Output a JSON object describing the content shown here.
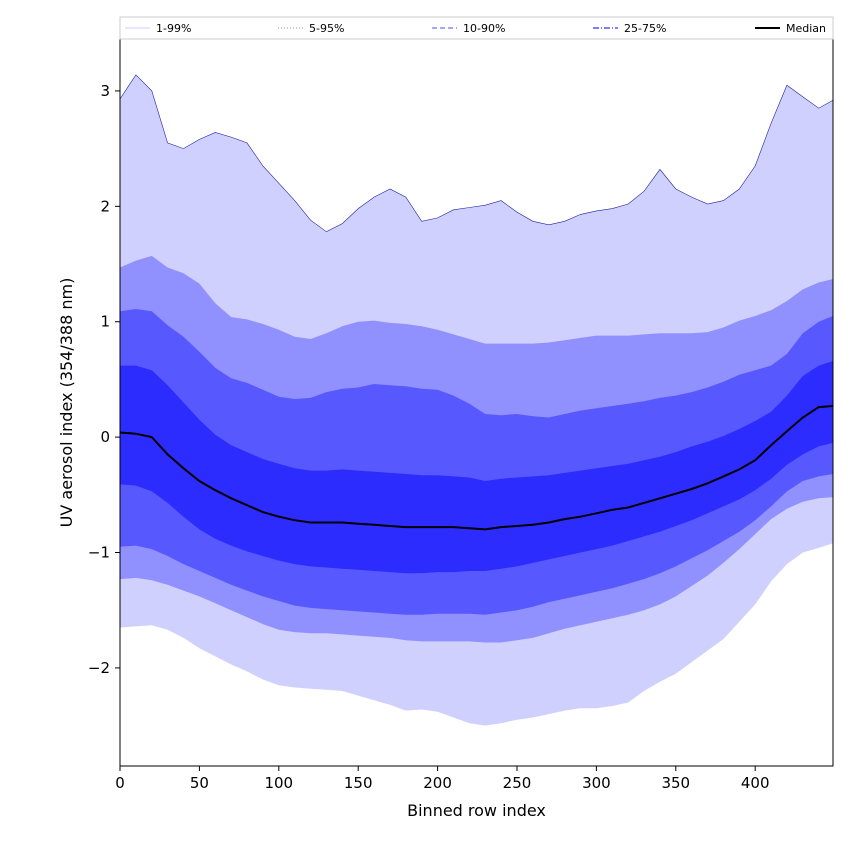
{
  "chart_data": {
    "type": "area",
    "xlabel": "Binned row index",
    "ylabel": "UV aerosol index (354/388 nm)",
    "xlim": [
      0,
      449
    ],
    "ylim": [
      -2.85,
      3.45
    ],
    "x_ticks": [
      0,
      50,
      100,
      150,
      200,
      250,
      300,
      350,
      400
    ],
    "y_ticks": [
      -2,
      -1,
      0,
      1,
      2,
      3
    ],
    "legend_position": "top",
    "x": [
      0,
      10,
      20,
      30,
      40,
      50,
      60,
      70,
      80,
      90,
      100,
      110,
      120,
      130,
      140,
      150,
      160,
      170,
      180,
      190,
      200,
      210,
      220,
      230,
      240,
      250,
      260,
      270,
      280,
      290,
      300,
      310,
      320,
      330,
      340,
      350,
      360,
      370,
      380,
      390,
      400,
      410,
      420,
      430,
      440,
      449
    ],
    "median": [
      0.04,
      0.03,
      0.0,
      -0.15,
      -0.27,
      -0.38,
      -0.46,
      -0.53,
      -0.59,
      -0.65,
      -0.69,
      -0.72,
      -0.74,
      -0.74,
      -0.74,
      -0.75,
      -0.76,
      -0.77,
      -0.78,
      -0.78,
      -0.78,
      -0.78,
      -0.79,
      -0.8,
      -0.78,
      -0.77,
      -0.76,
      -0.74,
      -0.71,
      -0.69,
      -0.66,
      -0.63,
      -0.61,
      -0.57,
      -0.53,
      -0.49,
      -0.45,
      -0.4,
      -0.34,
      -0.28,
      -0.2,
      -0.07,
      0.05,
      0.17,
      0.26,
      0.27
    ],
    "series": [
      {
        "name": "1-99%",
        "color": "#d0d0ff",
        "lower": [
          -1.65,
          -1.64,
          -1.63,
          -1.67,
          -1.74,
          -1.83,
          -1.9,
          -1.97,
          -2.03,
          -2.1,
          -2.15,
          -2.17,
          -2.18,
          -2.19,
          -2.2,
          -2.24,
          -2.28,
          -2.32,
          -2.37,
          -2.36,
          -2.38,
          -2.43,
          -2.48,
          -2.5,
          -2.48,
          -2.45,
          -2.43,
          -2.4,
          -2.37,
          -2.35,
          -2.35,
          -2.33,
          -2.3,
          -2.2,
          -2.12,
          -2.05,
          -1.95,
          -1.85,
          -1.75,
          -1.6,
          -1.45,
          -1.25,
          -1.1,
          -1.0,
          -0.96,
          -0.92
        ],
        "upper": [
          2.93,
          3.14,
          3.0,
          2.55,
          2.5,
          2.58,
          2.64,
          2.6,
          2.55,
          2.35,
          2.2,
          2.05,
          1.88,
          1.78,
          1.85,
          1.98,
          2.08,
          2.15,
          2.08,
          1.87,
          1.9,
          1.97,
          1.99,
          2.01,
          2.05,
          1.95,
          1.87,
          1.84,
          1.87,
          1.93,
          1.96,
          1.98,
          2.02,
          2.13,
          2.32,
          2.15,
          2.08,
          2.02,
          2.05,
          2.15,
          2.35,
          2.72,
          3.05,
          2.95,
          2.85,
          2.92
        ]
      },
      {
        "name": "5-95%",
        "color": "#9090ff",
        "lower": [
          -1.23,
          -1.22,
          -1.24,
          -1.28,
          -1.33,
          -1.38,
          -1.44,
          -1.5,
          -1.56,
          -1.62,
          -1.67,
          -1.69,
          -1.7,
          -1.7,
          -1.71,
          -1.72,
          -1.73,
          -1.74,
          -1.76,
          -1.77,
          -1.77,
          -1.77,
          -1.77,
          -1.78,
          -1.78,
          -1.76,
          -1.74,
          -1.7,
          -1.66,
          -1.63,
          -1.6,
          -1.57,
          -1.54,
          -1.5,
          -1.45,
          -1.38,
          -1.29,
          -1.2,
          -1.09,
          -0.97,
          -0.84,
          -0.71,
          -0.62,
          -0.56,
          -0.53,
          -0.52
        ],
        "upper": [
          1.47,
          1.53,
          1.57,
          1.47,
          1.42,
          1.33,
          1.16,
          1.04,
          1.02,
          0.98,
          0.93,
          0.87,
          0.85,
          0.9,
          0.96,
          1.0,
          1.01,
          0.99,
          0.98,
          0.96,
          0.93,
          0.89,
          0.85,
          0.81,
          0.81,
          0.81,
          0.81,
          0.82,
          0.84,
          0.86,
          0.88,
          0.88,
          0.88,
          0.89,
          0.9,
          0.9,
          0.9,
          0.91,
          0.95,
          1.01,
          1.05,
          1.1,
          1.18,
          1.28,
          1.34,
          1.37
        ]
      },
      {
        "name": "10-90%",
        "color": "#5858ff",
        "lower": [
          -0.95,
          -0.94,
          -0.97,
          -1.03,
          -1.1,
          -1.16,
          -1.22,
          -1.28,
          -1.33,
          -1.38,
          -1.42,
          -1.46,
          -1.48,
          -1.49,
          -1.5,
          -1.51,
          -1.52,
          -1.53,
          -1.54,
          -1.54,
          -1.53,
          -1.53,
          -1.53,
          -1.54,
          -1.52,
          -1.5,
          -1.47,
          -1.43,
          -1.4,
          -1.37,
          -1.34,
          -1.31,
          -1.27,
          -1.23,
          -1.18,
          -1.12,
          -1.05,
          -0.98,
          -0.9,
          -0.82,
          -0.72,
          -0.6,
          -0.47,
          -0.38,
          -0.34,
          -0.32
        ],
        "upper": [
          1.09,
          1.11,
          1.09,
          0.97,
          0.87,
          0.74,
          0.6,
          0.51,
          0.47,
          0.41,
          0.35,
          0.33,
          0.34,
          0.39,
          0.42,
          0.43,
          0.46,
          0.45,
          0.44,
          0.42,
          0.41,
          0.36,
          0.29,
          0.2,
          0.19,
          0.2,
          0.18,
          0.17,
          0.2,
          0.23,
          0.25,
          0.27,
          0.29,
          0.31,
          0.34,
          0.36,
          0.39,
          0.43,
          0.48,
          0.54,
          0.58,
          0.62,
          0.72,
          0.9,
          1.0,
          1.05
        ]
      },
      {
        "name": "25-75%",
        "color": "#2c2cff",
        "lower": [
          -0.41,
          -0.42,
          -0.47,
          -0.57,
          -0.69,
          -0.8,
          -0.88,
          -0.94,
          -0.99,
          -1.03,
          -1.07,
          -1.1,
          -1.12,
          -1.13,
          -1.14,
          -1.15,
          -1.16,
          -1.17,
          -1.18,
          -1.18,
          -1.17,
          -1.17,
          -1.16,
          -1.16,
          -1.14,
          -1.12,
          -1.09,
          -1.06,
          -1.03,
          -1.0,
          -0.97,
          -0.94,
          -0.9,
          -0.86,
          -0.82,
          -0.77,
          -0.72,
          -0.66,
          -0.6,
          -0.54,
          -0.46,
          -0.36,
          -0.24,
          -0.15,
          -0.08,
          -0.05
        ],
        "upper": [
          0.62,
          0.62,
          0.58,
          0.45,
          0.3,
          0.15,
          0.02,
          -0.07,
          -0.13,
          -0.19,
          -0.23,
          -0.27,
          -0.29,
          -0.29,
          -0.28,
          -0.29,
          -0.3,
          -0.31,
          -0.32,
          -0.33,
          -0.33,
          -0.34,
          -0.35,
          -0.38,
          -0.36,
          -0.35,
          -0.34,
          -0.33,
          -0.31,
          -0.29,
          -0.27,
          -0.25,
          -0.23,
          -0.2,
          -0.17,
          -0.13,
          -0.08,
          -0.04,
          0.01,
          0.07,
          0.14,
          0.22,
          0.36,
          0.53,
          0.62,
          0.66
        ]
      }
    ],
    "legend": [
      {
        "label": "1-99%",
        "color": "#d8d8ff",
        "style": "solid"
      },
      {
        "label": "5-95%",
        "color": "#a0a0ff",
        "style": "dotted"
      },
      {
        "label": "10-90%",
        "color": "#7070ff",
        "style": "dashed"
      },
      {
        "label": "25-75%",
        "color": "#3030ff",
        "style": "dashdot"
      },
      {
        "label": "Median",
        "color": "#000000",
        "style": "solid"
      }
    ]
  }
}
